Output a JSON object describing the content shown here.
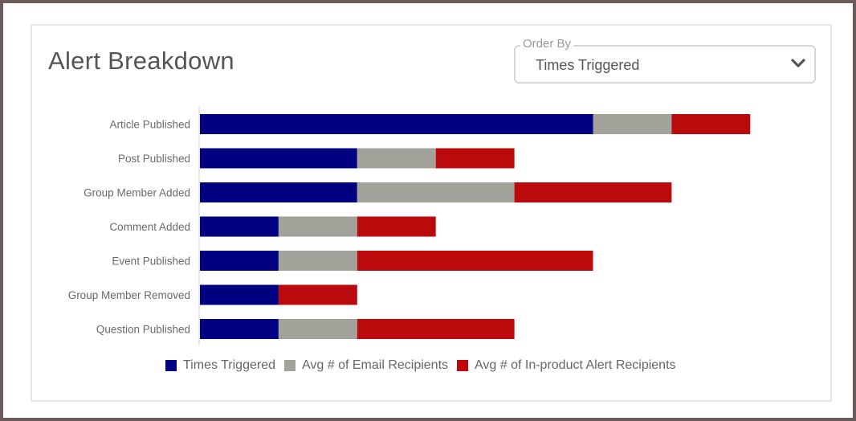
{
  "title": "Alert Breakdown",
  "order_by": {
    "label": "Order By",
    "value": "Times Triggered",
    "icon": "chevron-down-icon"
  },
  "colors": {
    "times_triggered": "#000080",
    "email_recipients": "#a3a29a",
    "in_product_recipients": "#bb0a0c"
  },
  "chart_data": {
    "type": "bar",
    "orientation": "horizontal",
    "stacked": true,
    "categories": [
      "Article Published",
      "Post Published",
      "Group Member Added",
      "Comment Added",
      "Event Published",
      "Group Member Removed",
      "Question Published"
    ],
    "series": [
      {
        "name": "Times Triggered",
        "values": [
          5,
          2,
          2,
          1,
          1,
          1,
          1
        ]
      },
      {
        "name": "Avg # of Email Recipients",
        "values": [
          1,
          1,
          2,
          1,
          1,
          0,
          1
        ]
      },
      {
        "name": "Avg # of In-product Alert Recipients",
        "values": [
          1,
          1,
          2,
          1,
          3,
          1,
          2
        ]
      }
    ],
    "xlim": [
      0,
      7
    ],
    "grid": false,
    "legend_position": "bottom"
  }
}
